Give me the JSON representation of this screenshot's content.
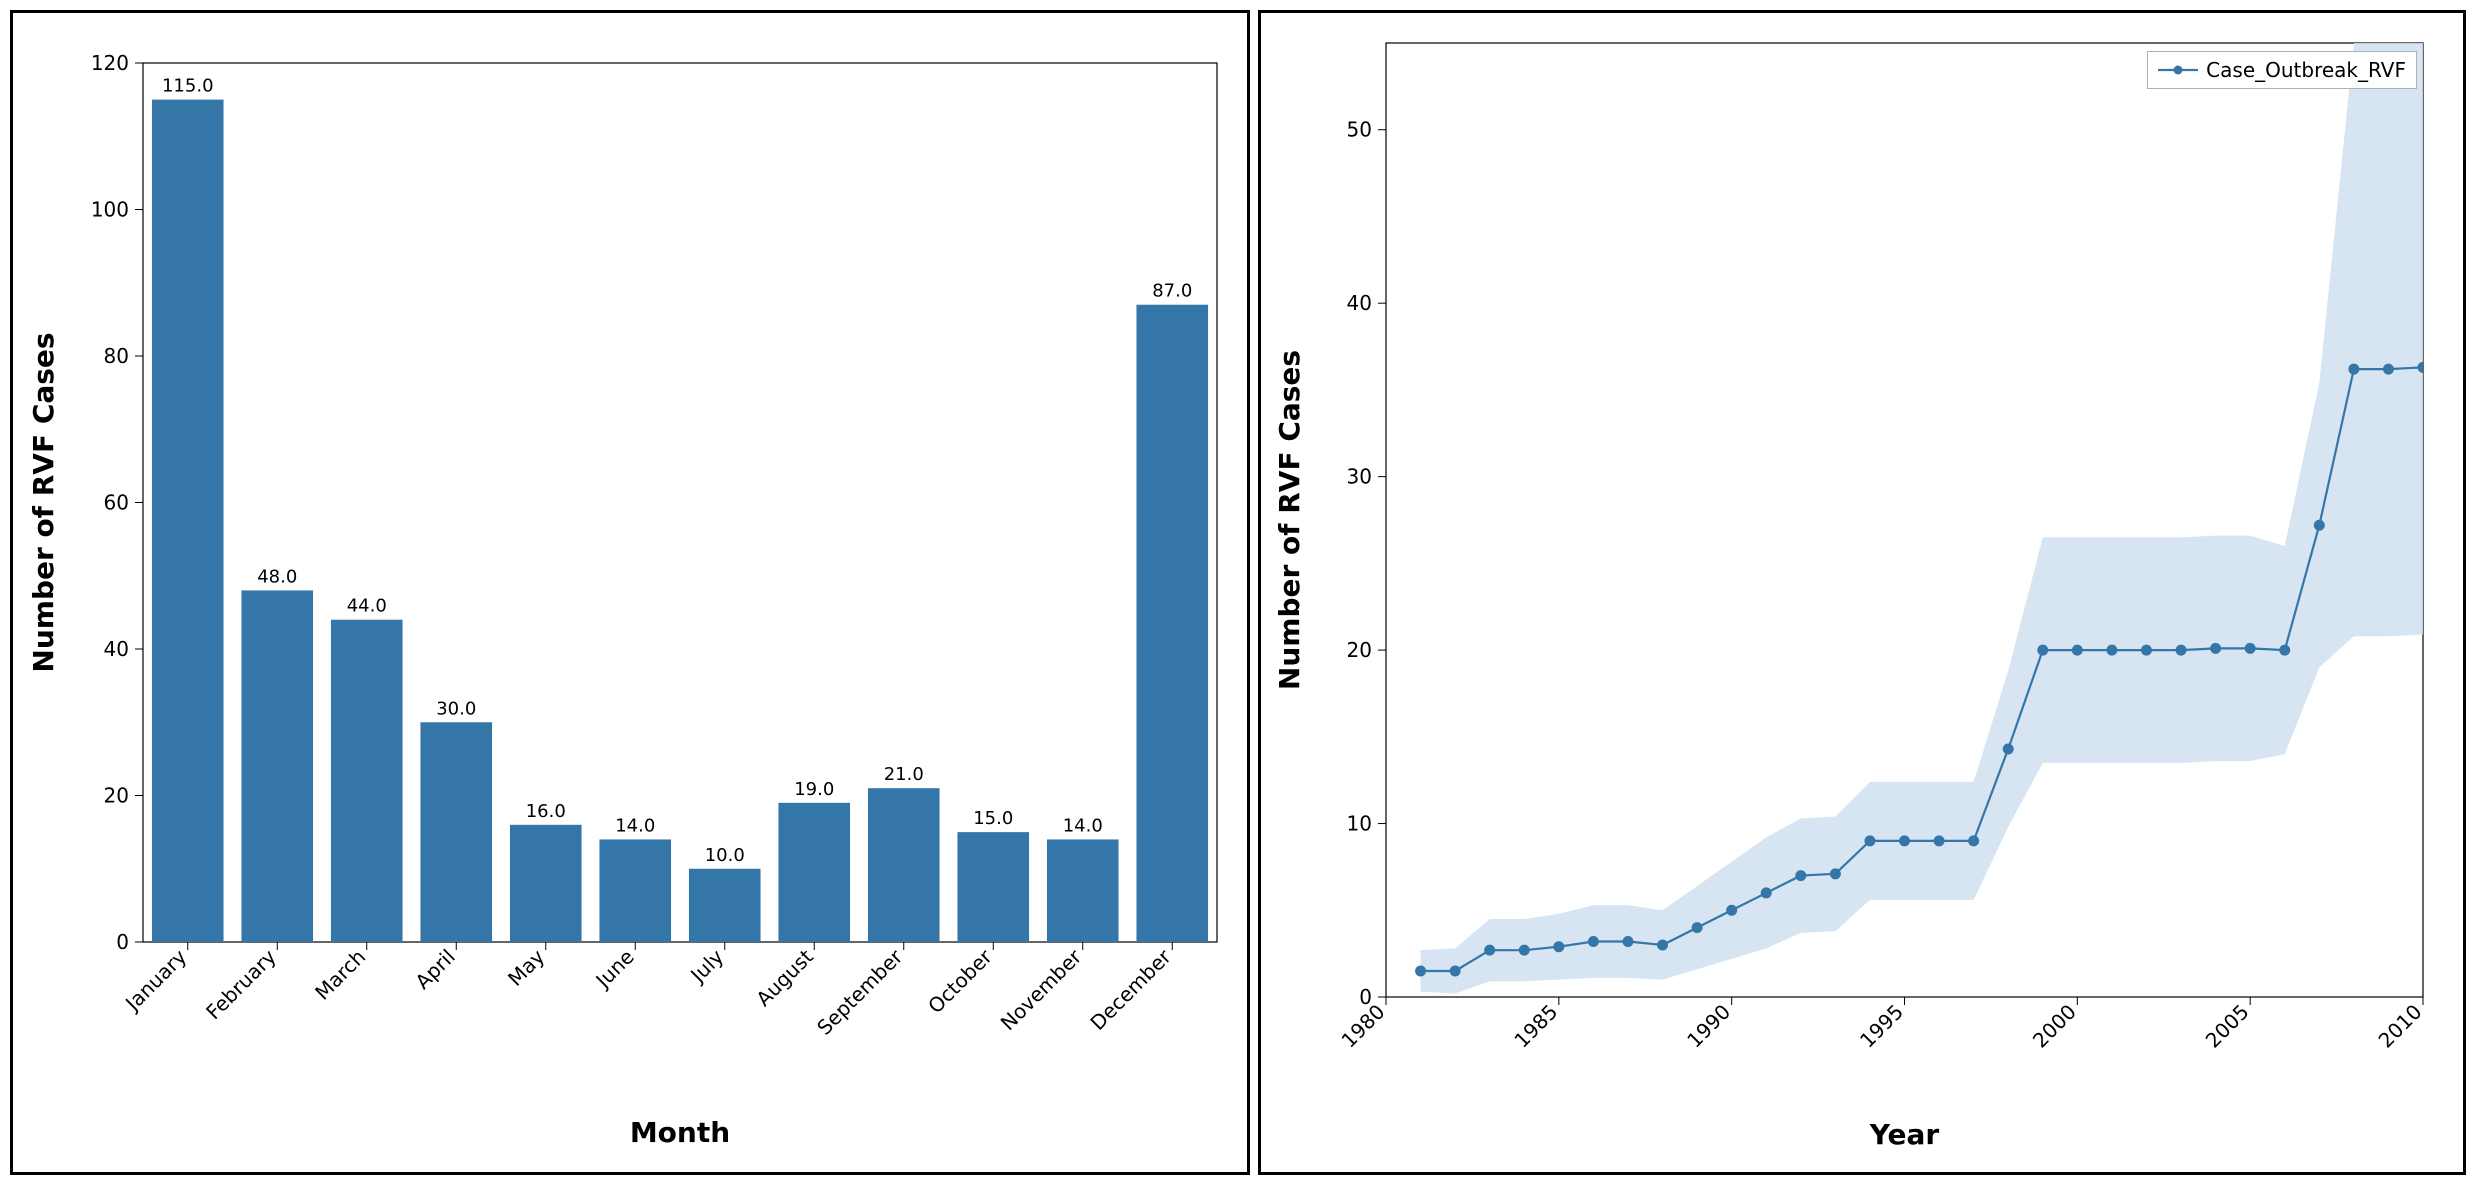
{
  "bar_chart": {
    "type": "bar",
    "categories": [
      "January",
      "February",
      "March",
      "April",
      "May",
      "June",
      "July",
      "August",
      "September",
      "October",
      "November",
      "December"
    ],
    "values": [
      115.0,
      48.0,
      44.0,
      30.0,
      16.0,
      14.0,
      10.0,
      19.0,
      21.0,
      15.0,
      14.0,
      87.0
    ],
    "bar_color": "#3576a8",
    "xlabel": "Month",
    "ylabel": "Number of RVF Cases",
    "label_fontsize": 28,
    "tick_fontsize": 20,
    "bar_label_fontsize": 18,
    "ylim": [
      0,
      120
    ],
    "ytick_step": 20,
    "background_color": "#ffffff",
    "axis_color": "#000000",
    "bar_width": 0.8,
    "xtick_rotation": 45
  },
  "line_chart": {
    "type": "line_with_band",
    "legend_label": "Case_Outbreak_RVF",
    "x_values": [
      1981,
      1982,
      1983,
      1984,
      1985,
      1986,
      1987,
      1988,
      1989,
      1990,
      1991,
      1992,
      1993,
      1994,
      1995,
      1996,
      1997,
      1998,
      1999,
      2000,
      2001,
      2002,
      2003,
      2004,
      2005,
      2006,
      2007,
      2008,
      2009,
      2010
    ],
    "y_values": [
      1.5,
      1.5,
      2.7,
      2.7,
      2.9,
      3.2,
      3.2,
      3.0,
      4.0,
      5.0,
      6.0,
      7.0,
      7.1,
      9.0,
      9.0,
      9.0,
      9.0,
      14.3,
      20.0,
      20.0,
      20.0,
      20.0,
      20.0,
      20.1,
      20.1,
      20.0,
      27.2,
      36.2,
      36.2,
      36.3
    ],
    "band_lower": [
      0.3,
      0.2,
      0.9,
      0.9,
      1.0,
      1.1,
      1.1,
      1.0,
      1.6,
      2.2,
      2.8,
      3.7,
      3.8,
      5.6,
      5.6,
      5.6,
      5.6,
      9.8,
      13.5,
      13.5,
      13.5,
      13.5,
      13.5,
      13.6,
      13.6,
      14.0,
      19.0,
      20.8,
      20.8,
      20.9
    ],
    "band_upper": [
      2.7,
      2.8,
      4.5,
      4.5,
      4.8,
      5.3,
      5.3,
      5.0,
      6.4,
      7.8,
      9.2,
      10.3,
      10.4,
      12.4,
      12.4,
      12.4,
      12.4,
      18.8,
      26.5,
      26.5,
      26.5,
      26.5,
      26.5,
      26.6,
      26.6,
      26.0,
      35.4,
      55.0,
      55.0,
      55.0
    ],
    "line_color": "#3576a8",
    "band_fill": "#cfe1ee",
    "band_opacity": 0.85,
    "marker": "circle",
    "marker_size": 5,
    "marker_fill": "#3576a8",
    "line_width": 2.2,
    "xlabel": "Year",
    "ylabel": "Number of RVF Cases",
    "label_fontsize": 28,
    "tick_fontsize": 20,
    "xlim": [
      1980,
      2010
    ],
    "xtick_step": 5,
    "ylim": [
      0,
      55
    ],
    "ytick_step": 10,
    "background_color": "#ffffff",
    "axis_color": "#000000",
    "xtick_rotation": 45,
    "legend_pos": "top-right"
  }
}
